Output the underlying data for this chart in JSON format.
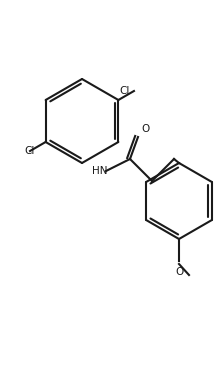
{
  "background_color": "#ffffff",
  "line_color": "#1a1a1a",
  "line_width": 1.5,
  "font_size_label": 7.5,
  "atoms": {
    "Cl1_label": "Cl",
    "Cl2_label": "Cl",
    "N_label": "HN",
    "O1_label": "O",
    "O2_label": "O"
  },
  "figsize": [
    2.15,
    3.91
  ],
  "dpi": 100
}
